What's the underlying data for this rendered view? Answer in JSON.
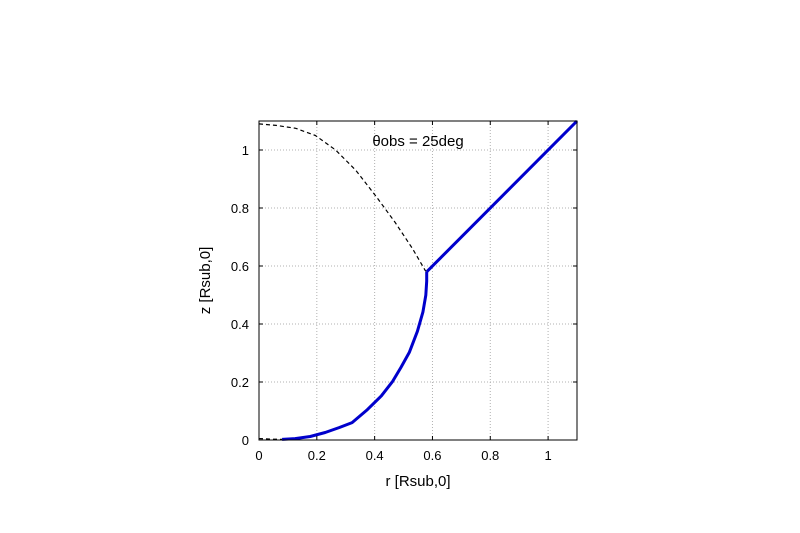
{
  "chart_data": {
    "type": "line",
    "title": "",
    "xlabel": "r [Rsub,0]",
    "ylabel": "z [Rsub,0]",
    "xlim": [
      0,
      1.1
    ],
    "ylim": [
      0,
      1.1
    ],
    "xticks": [
      0,
      0.2,
      0.4,
      0.6,
      0.8,
      1
    ],
    "xtick_labels": [
      "0",
      "0.2",
      "0.4",
      "0.6",
      "0.8",
      "1"
    ],
    "yticks": [
      0,
      0.2,
      0.4,
      0.6,
      0.8,
      1
    ],
    "ytick_labels": [
      "0",
      "0.2",
      "0.4",
      "0.6",
      "0.8",
      "1"
    ],
    "grid": true,
    "annotation": "θobs = 25deg",
    "colors": {
      "solid": "#0000cc",
      "dashed": "#000000",
      "grid": "#b0b0b0"
    },
    "series": [
      {
        "style": "dashed",
        "x": [
          0.0,
          0.059,
          0.127,
          0.195,
          0.265,
          0.335,
          0.405,
          0.471,
          0.531,
          0.575,
          0.58
        ],
        "y": [
          1.09,
          1.085,
          1.075,
          1.05,
          1.0,
          0.93,
          0.84,
          0.75,
          0.66,
          0.585,
          0.58
        ]
      },
      {
        "style": "dashed",
        "x": [
          0.0,
          0.04,
          0.08
        ],
        "y": [
          0.005,
          0.003,
          0.002
        ]
      },
      {
        "style": "solid",
        "x": [
          0.08,
          0.125,
          0.177,
          0.229,
          0.278,
          0.322,
          0.375,
          0.423,
          0.462,
          0.491,
          0.52,
          0.548,
          0.567,
          0.577,
          0.58,
          0.58
        ],
        "y": [
          0.002,
          0.005,
          0.012,
          0.026,
          0.043,
          0.06,
          0.105,
          0.152,
          0.202,
          0.25,
          0.302,
          0.375,
          0.441,
          0.499,
          0.548,
          0.58
        ]
      },
      {
        "style": "solid",
        "x": [
          0.58,
          1.1
        ],
        "y": [
          0.58,
          1.1
        ]
      }
    ]
  }
}
